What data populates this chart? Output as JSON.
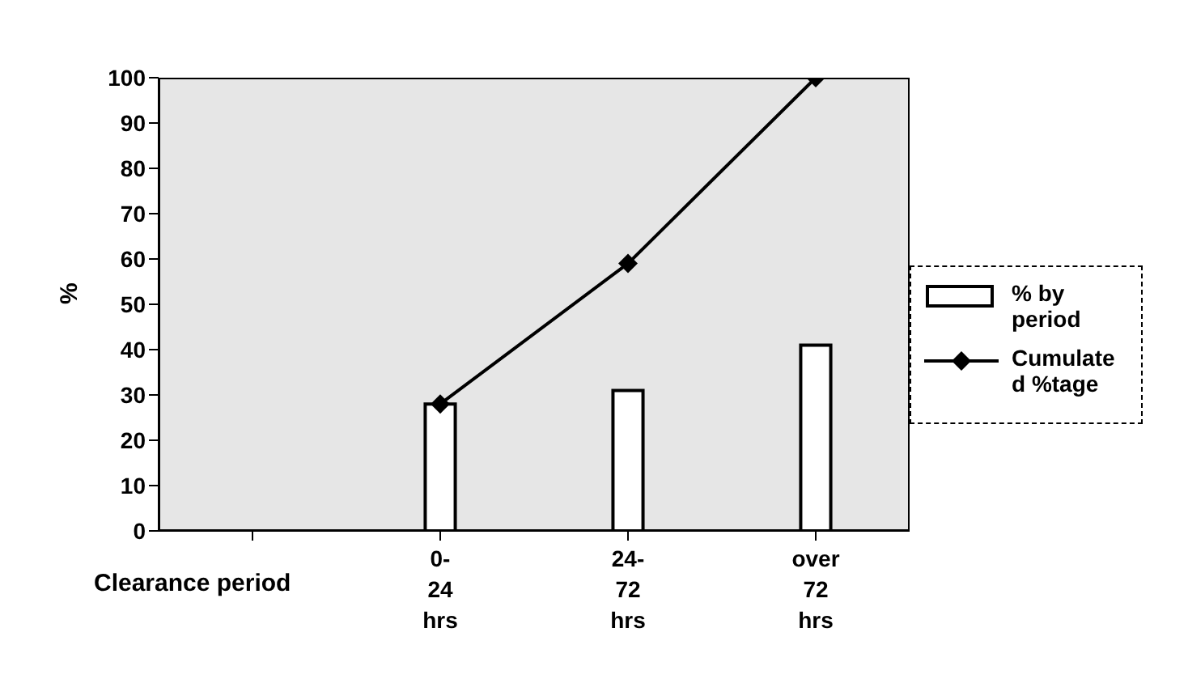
{
  "chart_data": {
    "type": "bar",
    "xlabel": "Clearance period",
    "ylabel": "%",
    "categories": [
      null,
      "0-24 hrs",
      "24-72 hrs",
      "over 72 hrs"
    ],
    "series": [
      {
        "name": "% by period",
        "color": "#ffffff",
        "values": [
          null,
          28,
          31,
          41
        ]
      },
      {
        "name": "Cumulated %tage",
        "type": "line",
        "color": "#000000",
        "values": [
          null,
          28,
          59,
          100
        ],
        "marker": "diamond"
      }
    ],
    "ylim": [
      0,
      100
    ],
    "yticks": [
      0,
      10,
      20,
      30,
      40,
      50,
      60,
      70,
      80,
      90,
      100
    ],
    "grid": false,
    "legend": "right"
  }
}
